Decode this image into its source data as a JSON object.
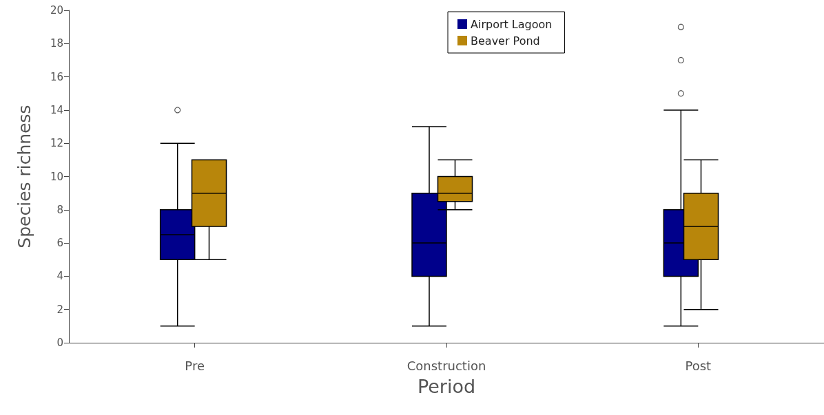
{
  "chart_data": {
    "type": "box",
    "xlabel": "Period",
    "ylabel": "Species richness",
    "categories": [
      "Pre",
      "Construction",
      "Post"
    ],
    "series": [
      {
        "name": "Airport Lagoon",
        "color": "#00008b",
        "boxes": [
          {
            "low": 1,
            "q1": 5,
            "median": 6.5,
            "q3": 8,
            "high": 12,
            "outliers": [
              14
            ]
          },
          {
            "low": 1,
            "q1": 4,
            "median": 6,
            "q3": 9,
            "high": 13
          },
          {
            "low": 1,
            "q1": 4,
            "median": 6,
            "q3": 8,
            "high": 14,
            "outliers": [
              15,
              17,
              19
            ]
          }
        ]
      },
      {
        "name": "Beaver Pond",
        "color": "#b8860b",
        "boxes": [
          {
            "low": 5,
            "q1": 7,
            "median": 9,
            "q3": 11,
            "high": 11
          },
          {
            "low": 8,
            "q1": 8.5,
            "median": 9,
            "q3": 10,
            "high": 11
          },
          {
            "low": 2,
            "q1": 5,
            "median": 7,
            "q3": 9,
            "high": 11
          }
        ]
      }
    ],
    "ylim": [
      0,
      20
    ],
    "yticks": [
      0,
      2,
      4,
      6,
      8,
      10,
      12,
      14,
      16,
      18,
      20
    ],
    "legend": "top"
  }
}
